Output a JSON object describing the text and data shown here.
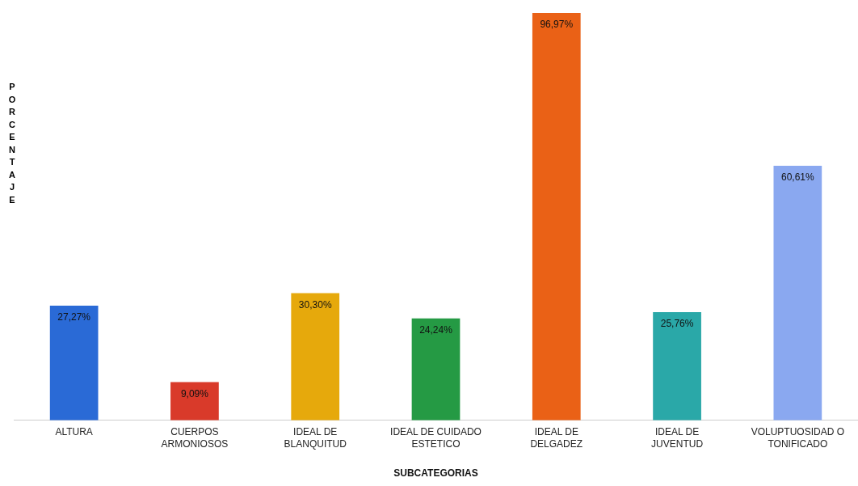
{
  "chart_data": {
    "type": "bar",
    "xlabel": "SUBCATEGORIAS",
    "ylabel": "PORCENTAJE",
    "categories": [
      "ALTURA",
      "CUERPOS ARMONIOSOS",
      "IDEAL DE BLANQUITUD",
      "IDEAL DE CUIDADO ESTETICO",
      "IDEAL DE DELGADEZ",
      "IDEAL DE JUVENTUD",
      "VOLUPTUOSIDAD O TONIFICADO"
    ],
    "values": [
      27.27,
      9.09,
      30.3,
      24.24,
      96.97,
      25.76,
      60.61
    ],
    "value_labels": [
      "27,27%",
      "9,09%",
      "30,30%",
      "24,24%",
      "96,97%",
      "25,76%",
      "60,61%"
    ],
    "colors": [
      "#2a6ad6",
      "#d93a2a",
      "#e6a90c",
      "#259a44",
      "#ea6116",
      "#2aa8a8",
      "#8aa8f0"
    ],
    "grid": false,
    "legend": false
  }
}
